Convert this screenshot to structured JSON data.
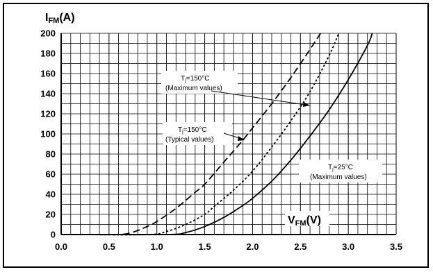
{
  "chart_data": {
    "type": "line",
    "title": "",
    "xlabel": {
      "main": "V",
      "sub": "FM",
      "unit": "(V)"
    },
    "ylabel": {
      "main": "I",
      "sub": "FM",
      "unit": "(A)"
    },
    "xlim": [
      0,
      3.5
    ],
    "ylim": [
      0,
      200
    ],
    "x_ticks": [
      "0.0",
      "0.5",
      "1.0",
      "1.5",
      "2.0",
      "2.5",
      "3.0",
      "3.5"
    ],
    "y_ticks": [
      "0",
      "20",
      "40",
      "60",
      "80",
      "100",
      "120",
      "140",
      "160",
      "180",
      "200"
    ],
    "grid": true,
    "series": [
      {
        "name": "Tj=150°C (Typical values)",
        "style": "dashed",
        "x": [
          0.1,
          0.5,
          0.7,
          0.9,
          1.0,
          1.2,
          1.4,
          1.5,
          1.7,
          1.9,
          2.0,
          2.2,
          2.4,
          2.6,
          2.71
        ],
        "y": [
          0,
          0,
          1,
          8,
          13,
          26,
          42,
          50,
          72,
          94,
          106,
          130,
          156,
          184,
          200
        ]
      },
      {
        "name": "Tj=150°C (Maximum values)",
        "style": "dotted",
        "x": [
          0.1,
          0.9,
          1.1,
          1.3,
          1.5,
          1.6,
          1.8,
          2.0,
          2.2,
          2.4,
          2.6,
          2.8,
          2.9
        ],
        "y": [
          0,
          0,
          3,
          10,
          20,
          28,
          44,
          63,
          87,
          113,
          142,
          178,
          200
        ]
      },
      {
        "name": "Tj=25°C (Maximum values)",
        "style": "solid",
        "x": [
          0.1,
          1.1,
          1.3,
          1.5,
          1.7,
          1.9,
          2.0,
          2.2,
          2.4,
          2.6,
          2.8,
          3.0,
          3.2,
          3.25
        ],
        "y": [
          0,
          0,
          2,
          8,
          17,
          29,
          36,
          53,
          74,
          98,
          124,
          154,
          188,
          200
        ]
      }
    ],
    "annotations": [
      {
        "line1_main": "T",
        "line1_sub": "j",
        "line1_rest": "=150°C",
        "line2": "(Maximum values)"
      },
      {
        "line1_main": "T",
        "line1_sub": "j",
        "line1_rest": "=150°C",
        "line2": "(Typical values)"
      },
      {
        "line1_main": "T",
        "line1_sub": "j",
        "line1_rest": "=25°C",
        "line2": "(Maximum values)"
      }
    ]
  },
  "colors": {
    "line": "#000000",
    "grid": "#000000",
    "background": "#ffffff"
  }
}
